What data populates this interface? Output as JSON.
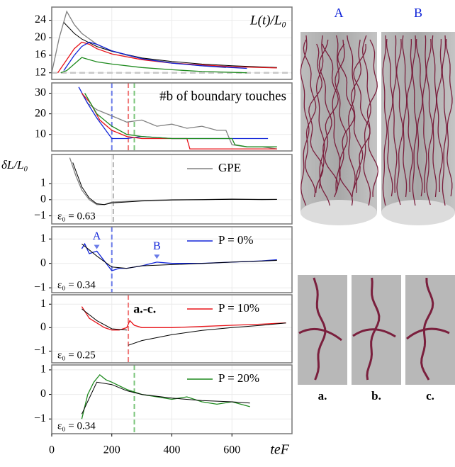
{
  "chart_data": [
    {
      "type": "line",
      "title": "L(t)/L₀",
      "xlim": [
        0,
        800
      ],
      "ylim": [
        10.5,
        27
      ],
      "yticks": [
        12,
        16,
        20,
        24
      ],
      "grid": true,
      "hlines": [
        {
          "y": 12,
          "color": "#c8c8c8"
        }
      ],
      "series": [
        {
          "color": "#808080",
          "x": [
            0,
            25,
            50,
            75,
            100,
            150,
            200,
            250,
            300,
            400,
            500,
            580
          ],
          "values": [
            12,
            20,
            26,
            23,
            21,
            18.5,
            17,
            16,
            15.3,
            14.3,
            13.6,
            13.2
          ]
        },
        {
          "color": "#000000",
          "x": [
            40,
            75,
            100,
            150,
            200,
            300,
            400,
            500,
            600,
            750
          ],
          "values": [
            23.5,
            21,
            19.7,
            18,
            16.9,
            15.4,
            14.6,
            14,
            13.6,
            13.2
          ]
        },
        {
          "color": "#e8141a",
          "x": [
            20,
            50,
            75,
            100,
            125,
            150,
            200,
            300,
            400,
            500,
            600,
            750
          ],
          "values": [
            12,
            15,
            17.5,
            19,
            18.5,
            17.5,
            16.3,
            15,
            14.2,
            13.8,
            13.4,
            13.1
          ]
        },
        {
          "color": "#1024d8",
          "x": [
            40,
            75,
            100,
            125,
            150,
            200,
            300,
            400,
            500,
            600,
            650
          ],
          "values": [
            12.5,
            16,
            18,
            19,
            18.5,
            17,
            15.2,
            14.2,
            13.6,
            13.2,
            13
          ]
        },
        {
          "color": "#1e8a1e",
          "x": [
            30,
            50,
            75,
            100,
            125,
            150,
            200,
            300,
            400,
            500,
            650
          ],
          "values": [
            12,
            12.5,
            14,
            15.5,
            15,
            14.5,
            14,
            13.2,
            12.7,
            12.3,
            12
          ]
        }
      ]
    },
    {
      "type": "line",
      "title": "#b of boundary touches",
      "xlim": [
        0,
        800
      ],
      "ylim": [
        2,
        35
      ],
      "yticks": [
        10,
        20,
        30
      ],
      "grid": true,
      "vlines": [
        {
          "x": 200,
          "color": "#6a7be8"
        },
        {
          "x": 255,
          "color": "#f07a7a"
        },
        {
          "x": 275,
          "color": "#7ac47a"
        }
      ],
      "series": [
        {
          "color": "#808080",
          "x": [
            100,
            120,
            150,
            200,
            250,
            300,
            350,
            400,
            450,
            500,
            550,
            580,
            600,
            650,
            700,
            750
          ],
          "values": [
            30,
            25,
            22,
            19,
            16,
            17,
            14,
            15,
            13,
            14,
            12,
            12,
            5,
            4,
            4,
            3
          ]
        },
        {
          "color": "#1024d8",
          "x": [
            90,
            120,
            150,
            180,
            200,
            250,
            300,
            400,
            500,
            600,
            720
          ],
          "values": [
            33,
            25,
            18,
            12,
            8,
            8,
            9,
            8,
            8,
            8,
            8
          ]
        },
        {
          "color": "#e8141a",
          "x": [
            100,
            130,
            160,
            200,
            250,
            300,
            400,
            450,
            460,
            600,
            750
          ],
          "values": [
            30,
            25,
            17,
            12,
            9,
            8,
            8,
            8,
            3,
            3,
            3
          ]
        },
        {
          "color": "#1e8a1e",
          "x": [
            110,
            150,
            200,
            250,
            300,
            400,
            500,
            600,
            610,
            650,
            750
          ],
          "values": [
            30,
            20,
            14,
            10,
            9,
            8,
            8,
            8,
            5,
            4,
            4
          ]
        }
      ]
    },
    {
      "type": "line",
      "ylabel": "δL/L₀",
      "annotation": "ε₀ = 0.63",
      "legend": "upper right",
      "xlim": [
        0,
        800
      ],
      "ylim": [
        -1.5,
        2.8
      ],
      "yticks": [
        {
          "value": -1,
          "label": "−1"
        },
        0,
        1
      ],
      "grid": true,
      "vlines": [
        {
          "x": 205,
          "color": "#b4b4b4"
        }
      ],
      "series": [
        {
          "name": "GPE",
          "color": "#808080",
          "x": [
            60,
            80,
            100,
            125,
            150,
            175,
            200,
            250,
            300,
            400,
            500,
            600,
            700,
            750
          ],
          "values": [
            2.6,
            1.5,
            0.6,
            0,
            -0.3,
            -0.3,
            -0.15,
            -0.1,
            -0.05,
            0,
            0,
            0.05,
            0,
            0.02
          ]
        },
        {
          "color": "#000000",
          "x": [
            70,
            100,
            125,
            150,
            175,
            200,
            300,
            400,
            500,
            600,
            750
          ],
          "values": [
            2.3,
            0.8,
            0.1,
            -0.25,
            -0.3,
            -0.2,
            -0.08,
            -0.02,
            0,
            0.02,
            0.02
          ]
        }
      ]
    },
    {
      "type": "line",
      "annotation": "ε₀ = 0.34",
      "legend": "upper right",
      "xlim": [
        0,
        800
      ],
      "ylim": [
        -1.2,
        1.5
      ],
      "yticks": [
        {
          "value": -1,
          "label": "−1"
        },
        0,
        1
      ],
      "grid": true,
      "vlines": [
        {
          "x": 200,
          "color": "#6a7be8"
        }
      ],
      "markers": [
        {
          "label": "A",
          "x": 150,
          "y": 0.5
        },
        {
          "label": "B",
          "x": 350,
          "y": 0.1
        }
      ],
      "series": [
        {
          "name": "P = 0%",
          "color": "#1024d8",
          "x": [
            100,
            110,
            125,
            150,
            175,
            200,
            225,
            250,
            300,
            350,
            400,
            500,
            600,
            700,
            750
          ],
          "values": [
            0.6,
            0.8,
            0.4,
            0.5,
            0.1,
            -0.3,
            -0.2,
            -0.2,
            -0.1,
            0.05,
            0,
            0,
            0.05,
            0.1,
            0.15
          ]
        },
        {
          "color": "#000000",
          "x": [
            100,
            150,
            200,
            250,
            300,
            400,
            500,
            600,
            750
          ],
          "values": [
            0.8,
            0.3,
            -0.15,
            -0.2,
            -0.1,
            -0.05,
            0,
            0.05,
            0.12
          ]
        }
      ]
    },
    {
      "type": "line",
      "annotation": "ε₀ = 0.25",
      "label": "a.-c.",
      "legend": "upper right",
      "xlim": [
        0,
        800
      ],
      "ylim": [
        -1.5,
        1.4
      ],
      "yticks": [
        {
          "value": -1,
          "label": "−1"
        },
        0,
        1
      ],
      "grid": true,
      "vlines": [
        {
          "x": 255,
          "color": "#f07a7a"
        }
      ],
      "series": [
        {
          "name": "P = 10%",
          "color": "#e8141a",
          "x": [
            100,
            110,
            125,
            150,
            175,
            200,
            225,
            250,
            260,
            275,
            300,
            350,
            400,
            500,
            600,
            700,
            780
          ],
          "values": [
            0.9,
            0.7,
            0.4,
            0.2,
            0,
            -0.1,
            -0.1,
            0,
            0.3,
            0.1,
            0,
            0,
            0,
            0.05,
            0.1,
            0.15,
            0.2
          ]
        },
        {
          "color": "#000000",
          "x": [
            100,
            150,
            200,
            250,
            252,
            255,
            300,
            400,
            500,
            600,
            700,
            780
          ],
          "values": [
            0.8,
            0.3,
            -0.05,
            -0.1,
            null,
            -0.75,
            -0.55,
            -0.3,
            -0.12,
            0,
            0.1,
            0.2
          ]
        }
      ]
    },
    {
      "type": "line",
      "annotation": "ε₀ = 0.34",
      "legend": "upper right",
      "xlim": [
        0,
        800
      ],
      "ylim": [
        -1.6,
        1.2
      ],
      "yticks": [
        {
          "value": -1,
          "label": "−1"
        },
        0,
        1
      ],
      "xticks": [
        0,
        200,
        400,
        600
      ],
      "xlabel": "teF",
      "grid": true,
      "vlines": [
        {
          "x": 275,
          "color": "#7ac47a"
        }
      ],
      "series": [
        {
          "name": "P = 20%",
          "color": "#1e8a1e",
          "x": [
            100,
            120,
            140,
            160,
            180,
            200,
            250,
            300,
            350,
            400,
            450,
            500,
            550,
            600,
            660
          ],
          "values": [
            -1,
            0,
            0.5,
            0.8,
            0.6,
            0.5,
            0.2,
            0,
            -0.1,
            -0.2,
            -0.1,
            -0.3,
            -0.4,
            -0.3,
            -0.5
          ]
        },
        {
          "color": "#000000",
          "x": [
            100,
            150,
            200,
            250,
            300,
            400,
            500,
            600,
            660
          ],
          "values": [
            -0.8,
            0.5,
            0.4,
            0.15,
            0,
            -0.15,
            -0.25,
            -0.3,
            -0.35
          ]
        }
      ]
    }
  ],
  "renderings": {
    "labels": [
      "A",
      "B"
    ],
    "zoom_labels": [
      "a.",
      "b.",
      "c."
    ]
  }
}
